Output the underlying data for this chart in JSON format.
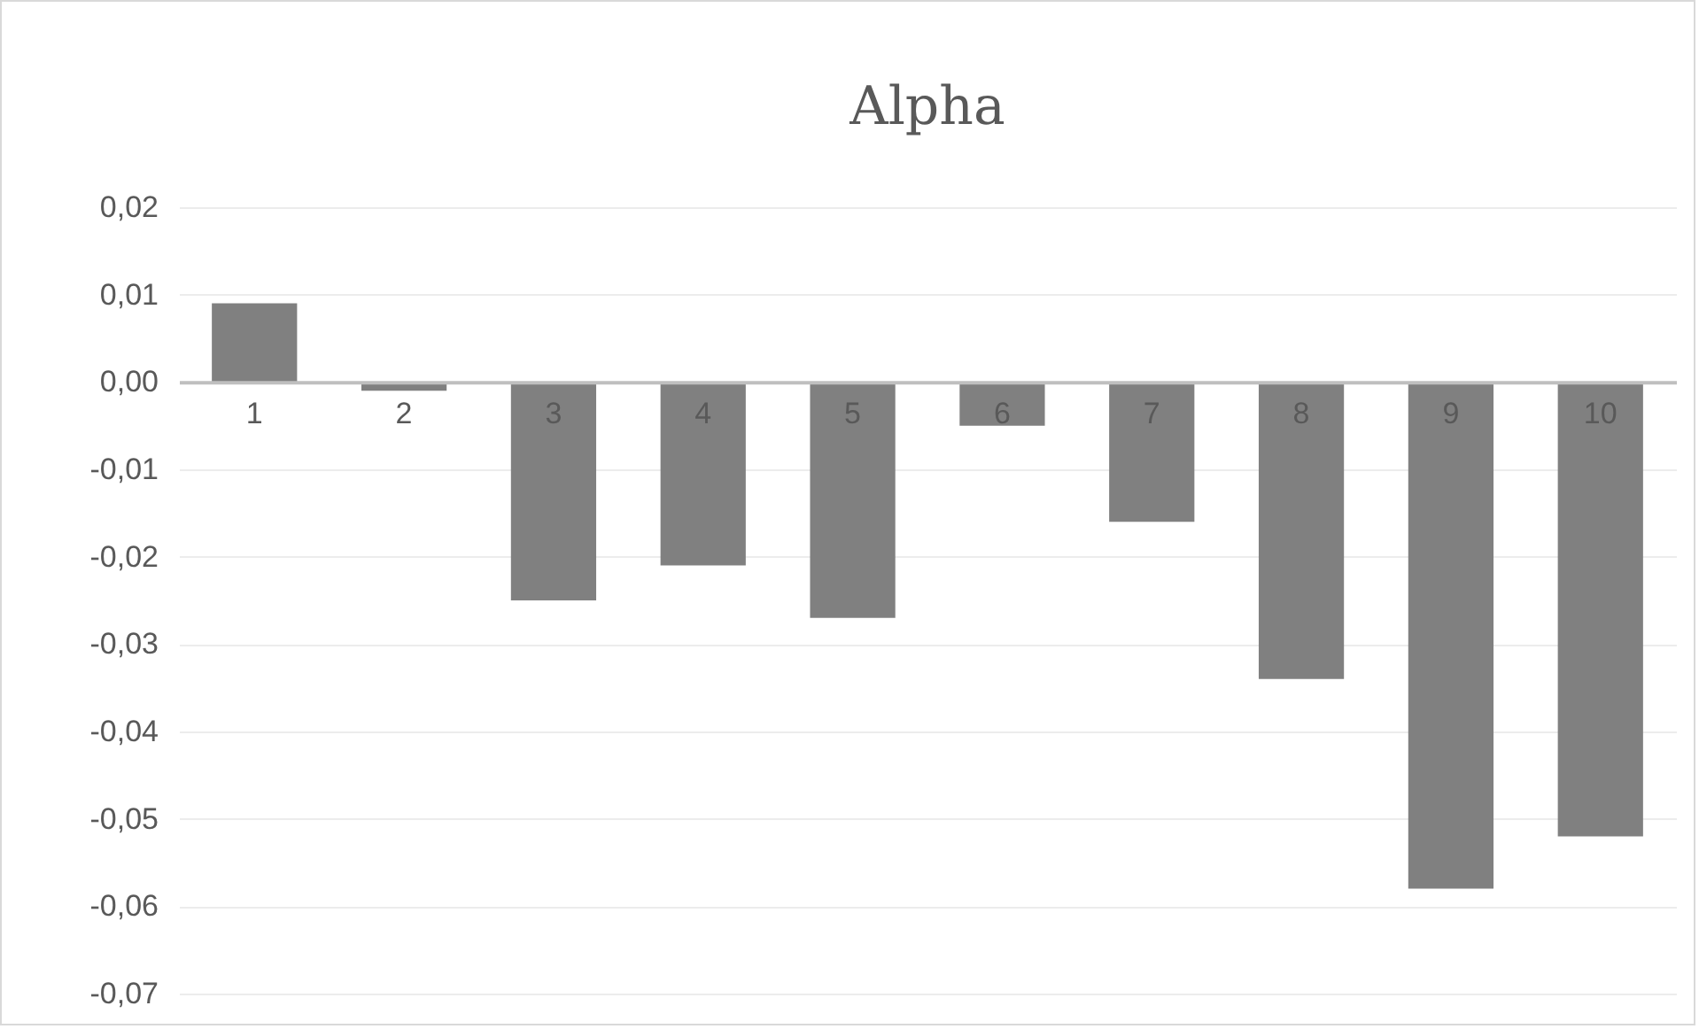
{
  "chart_data": {
    "type": "bar",
    "title": "Alpha",
    "categories": [
      "1",
      "2",
      "3",
      "4",
      "5",
      "6",
      "7",
      "8",
      "9",
      "10"
    ],
    "values": [
      0.009,
      -0.001,
      -0.025,
      -0.021,
      -0.027,
      -0.005,
      -0.016,
      -0.034,
      -0.058,
      -0.052
    ],
    "color": "#808080",
    "ylim": [
      -0.07,
      0.02
    ],
    "yticks": [
      {
        "value": 0.02,
        "label": "0,02"
      },
      {
        "value": 0.01,
        "label": "0,01"
      },
      {
        "value": 0,
        "label": "0,00"
      },
      {
        "value": -0.01,
        "label": "-0,01"
      },
      {
        "value": -0.02,
        "label": "-0,02"
      },
      {
        "value": -0.03,
        "label": "-0,03"
      },
      {
        "value": -0.04,
        "label": "-0,04"
      },
      {
        "value": -0.05,
        "label": "-0,05"
      },
      {
        "value": -0.06,
        "label": "-0,06"
      },
      {
        "value": -0.07,
        "label": "-0,07"
      }
    ],
    "grid": "y"
  }
}
